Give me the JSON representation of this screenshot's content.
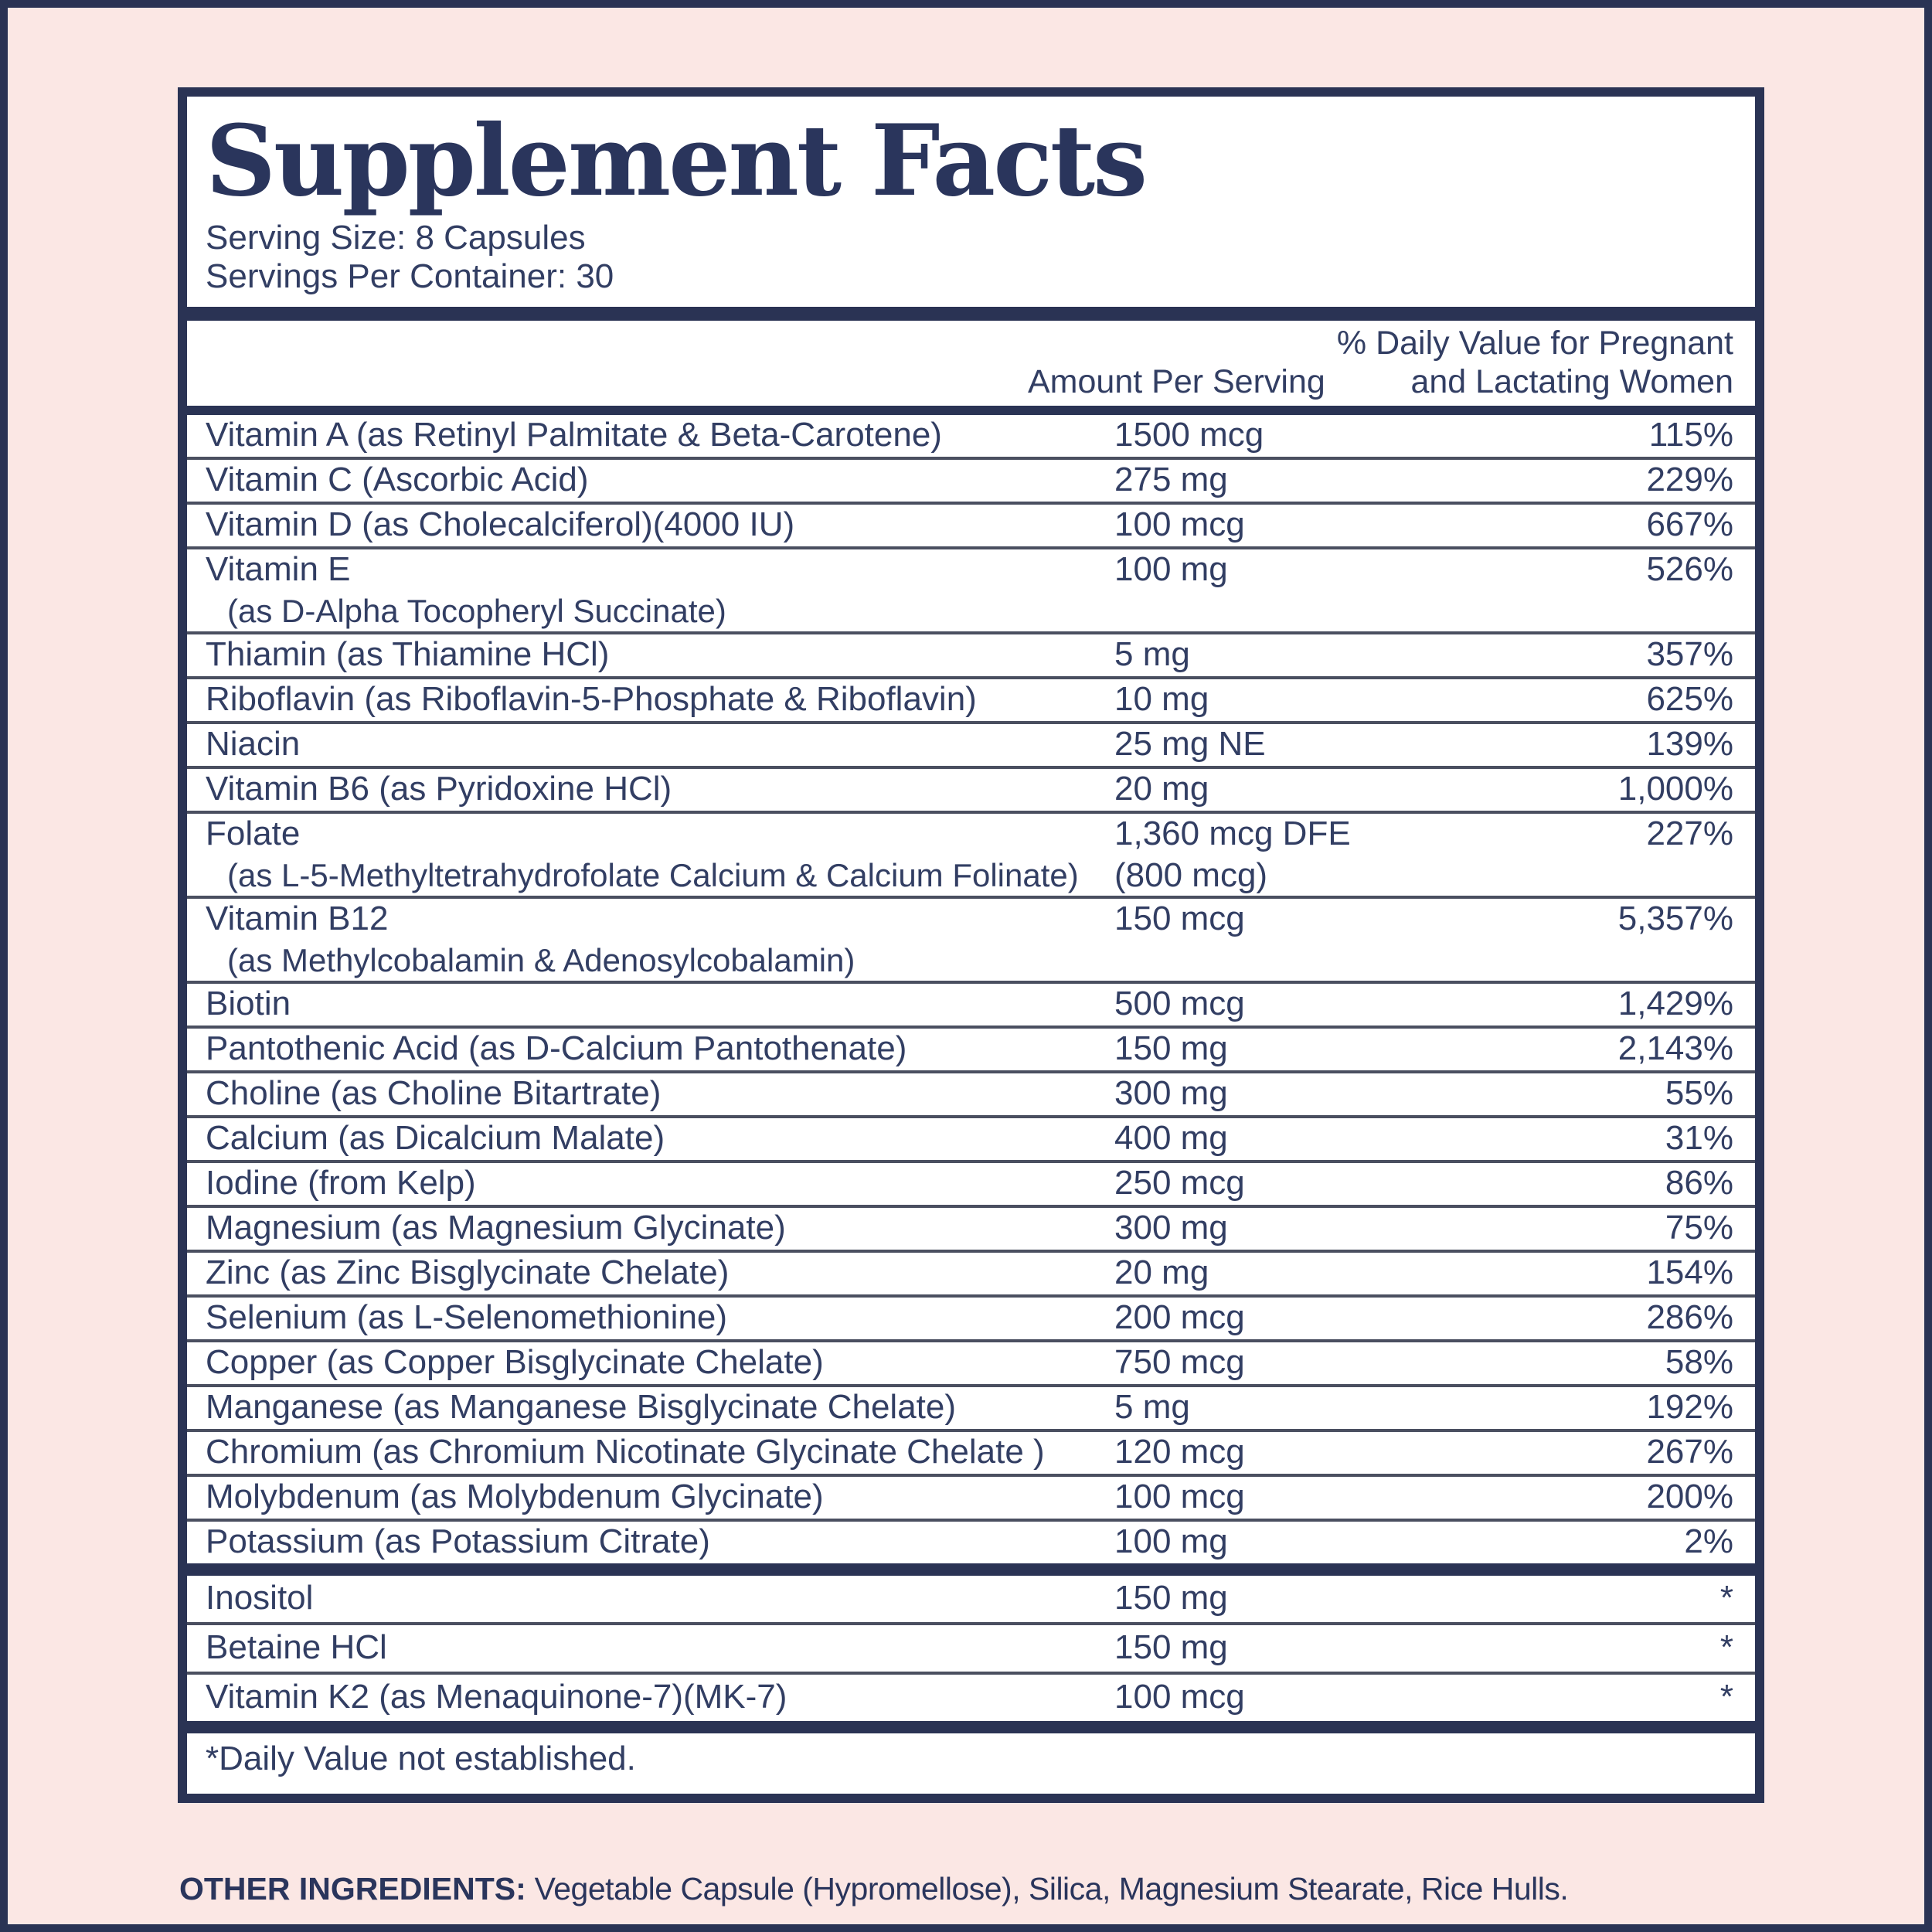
{
  "label": {
    "title": "Supplement Facts",
    "serving_size": "Serving Size: 8 Capsules",
    "servings_per_container": "Servings Per Container: 30",
    "columns": {
      "amount_header": "Amount Per Serving",
      "dv_header_line1": "% Daily Value for Pregnant",
      "dv_header_line2": "and Lactating Women"
    },
    "main_rows": [
      {
        "name": "Vitamin A (as Retinyl Palmitate & Beta-Carotene)",
        "amount": "1500 mcg",
        "dv": "115%"
      },
      {
        "name": "Vitamin C (Ascorbic Acid)",
        "amount": "275 mg",
        "dv": "229%"
      },
      {
        "name": "Vitamin D (as Cholecalciferol)(4000 IU)",
        "amount": "100 mcg",
        "dv": "667%"
      },
      {
        "name": "Vitamin E",
        "name2": "(as D-Alpha Tocopheryl Succinate)",
        "amount": "100 mg",
        "dv": "526%"
      },
      {
        "name": "Thiamin (as Thiamine HCl)",
        "amount": "5 mg",
        "dv": "357%"
      },
      {
        "name": "Riboflavin (as Riboflavin-5-Phosphate & Riboflavin)",
        "amount": "10 mg",
        "dv": "625%"
      },
      {
        "name": "Niacin",
        "amount": "25 mg NE",
        "dv": "139%"
      },
      {
        "name": "Vitamin B6 (as Pyridoxine HCl)",
        "amount": "20 mg",
        "dv": "1,000%"
      },
      {
        "name": "Folate",
        "name2": "(as L-5-Methyltetrahydrofolate Calcium & Calcium Folinate)",
        "amount": "1,360 mcg DFE",
        "amount2": "(800 mcg)",
        "dv": "227%"
      },
      {
        "name": "Vitamin B12",
        "name2": "(as Methylcobalamin & Adenosylcobalamin)",
        "amount": "150 mcg",
        "dv": "5,357%"
      },
      {
        "name": "Biotin",
        "amount": "500 mcg",
        "dv": "1,429%"
      },
      {
        "name": "Pantothenic Acid (as D-Calcium Pantothenate)",
        "amount": "150 mg",
        "dv": "2,143%"
      },
      {
        "name": "Choline (as Choline Bitartrate)",
        "amount": "300 mg",
        "dv": "55%"
      },
      {
        "name": "Calcium (as Dicalcium Malate)",
        "amount": "400 mg",
        "dv": "31%"
      },
      {
        "name": "Iodine (from Kelp)",
        "amount": "250 mcg",
        "dv": "86%"
      },
      {
        "name": "Magnesium (as Magnesium Glycinate)",
        "amount": "300 mg",
        "dv": "75%"
      },
      {
        "name": "Zinc (as Zinc Bisglycinate Chelate)",
        "amount": "20 mg",
        "dv": "154%"
      },
      {
        "name": "Selenium (as L-Selenomethionine)",
        "amount": "200 mcg",
        "dv": "286%"
      },
      {
        "name": "Copper (as Copper Bisglycinate Chelate)",
        "amount": "750 mcg",
        "dv": "58%"
      },
      {
        "name": "Manganese (as Manganese Bisglycinate Chelate)",
        "amount": "5 mg",
        "dv": "192%"
      },
      {
        "name": "Chromium (as Chromium Nicotinate Glycinate Chelate )",
        "amount": "120 mcg",
        "dv": "267%"
      },
      {
        "name": "Molybdenum (as Molybdenum Glycinate)",
        "amount": "100 mcg",
        "dv": "200%"
      },
      {
        "name": "Potassium (as Potassium Citrate)",
        "amount": "100 mg",
        "dv": "2%"
      }
    ],
    "other_rows": [
      {
        "name": "Inositol",
        "amount": "150 mg",
        "dv": "*"
      },
      {
        "name": "Betaine HCl",
        "amount": "150 mg",
        "dv": "*"
      },
      {
        "name": "Vitamin K2 (as Menaquinone-7)(MK-7)",
        "amount": "100 mcg",
        "dv": "*"
      }
    ],
    "footnote": "*Daily Value not established."
  },
  "other_ingredients": {
    "heading": "OTHER INGREDIENTS:",
    "text": "Vegetable Capsule (Hypromellose), Silica, Magnesium Stearate, Rice Hulls."
  },
  "colors": {
    "background_pink": "#fbe7e4",
    "navy": "#2a3354",
    "text_navy": "#323e63",
    "separator_gray": "#4a4f60",
    "panel_white": "#ffffff"
  }
}
